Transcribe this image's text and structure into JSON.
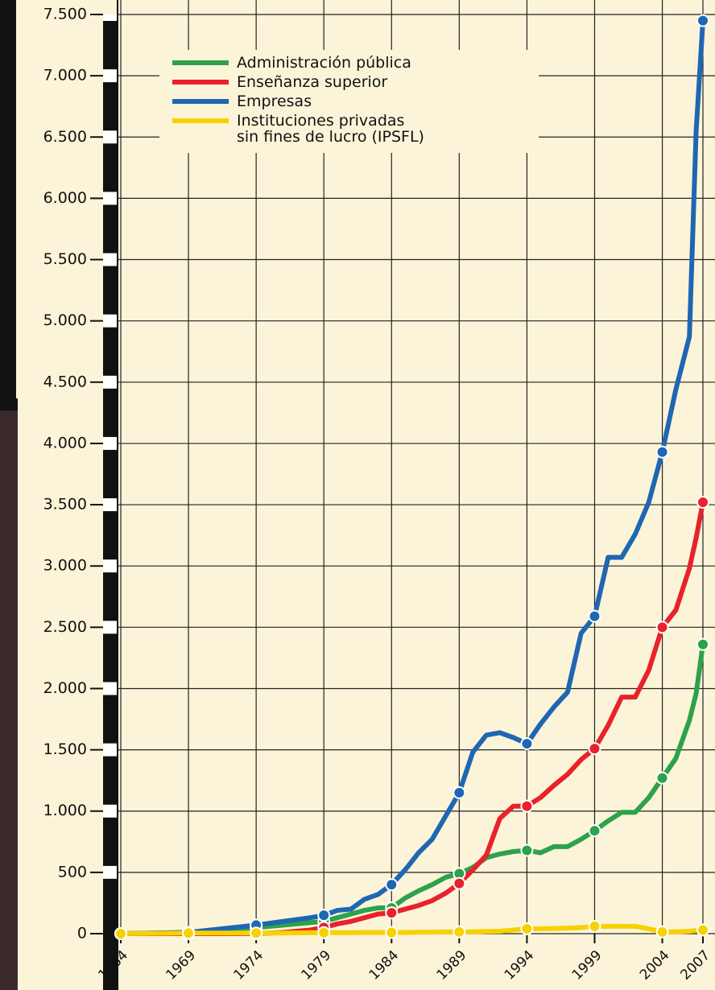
{
  "chart_data": {
    "type": "line",
    "x": [
      1964,
      1969,
      1974,
      1976,
      1978,
      1979,
      1980,
      1981,
      1982,
      1983,
      1984,
      1985,
      1986,
      1987,
      1988,
      1989,
      1990,
      1991,
      1992,
      1993,
      1994,
      1995,
      1996,
      1997,
      1998,
      1999,
      2000,
      2001,
      2002,
      2003,
      2004,
      2005,
      2006,
      2006.5,
      2007
    ],
    "series": [
      {
        "name": "Administración pública",
        "color": "#2ca24b",
        "values": [
          0,
          10,
          50,
          70,
          90,
          100,
          130,
          160,
          190,
          210,
          210,
          290,
          350,
          400,
          460,
          490,
          540,
          620,
          650,
          670,
          680,
          660,
          710,
          710,
          770,
          840,
          920,
          990,
          990,
          1110,
          1270,
          1430,
          1740,
          1960,
          2360
        ]
      },
      {
        "name": "Enseñanza superior",
        "color": "#e8212b",
        "values": [
          0,
          0,
          0,
          10,
          30,
          50,
          80,
          100,
          130,
          160,
          170,
          200,
          230,
          270,
          330,
          410,
          520,
          640,
          940,
          1040,
          1040,
          1110,
          1210,
          1300,
          1420,
          1510,
          1700,
          1930,
          1930,
          2150,
          2500,
          2640,
          2980,
          3230,
          3520
        ]
      },
      {
        "name": "Empresas",
        "color": "#1f66b3",
        "values": [
          0,
          10,
          70,
          100,
          130,
          150,
          190,
          200,
          280,
          320,
          400,
          520,
          660,
          770,
          960,
          1150,
          1480,
          1620,
          1640,
          1600,
          1550,
          1710,
          1850,
          1970,
          2450,
          2590,
          3070,
          3070,
          3260,
          3520,
          3930,
          4440,
          4870,
          6550,
          7450
        ]
      },
      {
        "name": "Instituciones privadas\nsin fines de lucro (IPSFL)",
        "color": "#f6d200",
        "values": [
          0,
          5,
          5,
          5,
          8,
          8,
          8,
          8,
          10,
          10,
          10,
          10,
          12,
          12,
          14,
          15,
          15,
          18,
          20,
          30,
          40,
          40,
          42,
          45,
          50,
          60,
          60,
          60,
          60,
          40,
          15,
          15,
          20,
          25,
          30
        ]
      }
    ],
    "xlim": [
      1964,
      2007
    ],
    "xticks": [
      1964,
      1969,
      1974,
      1979,
      1984,
      1989,
      1994,
      1999,
      2004,
      2007
    ],
    "ylim": [
      0,
      7500
    ],
    "yticks": [
      0,
      500,
      {
        "value": 1000,
        "label": "1.000"
      },
      {
        "value": 1500,
        "label": "1.500"
      },
      {
        "value": 2000,
        "label": "2.000"
      },
      {
        "value": 2500,
        "label": "2.500"
      },
      {
        "value": 3000,
        "label": "3.000"
      },
      {
        "value": 3500,
        "label": "3.500"
      },
      {
        "value": 4000,
        "label": "4.000"
      },
      {
        "value": 4500,
        "label": "4.500"
      },
      {
        "value": 5000,
        "label": "5.000"
      },
      {
        "value": 5500,
        "label": "5.500"
      },
      {
        "value": 6000,
        "label": "6.000"
      },
      {
        "value": 6500,
        "label": "6.500"
      },
      {
        "value": 7000,
        "label": "7.000"
      },
      {
        "value": 7500,
        "label": "7.500"
      }
    ],
    "grid": true
  }
}
